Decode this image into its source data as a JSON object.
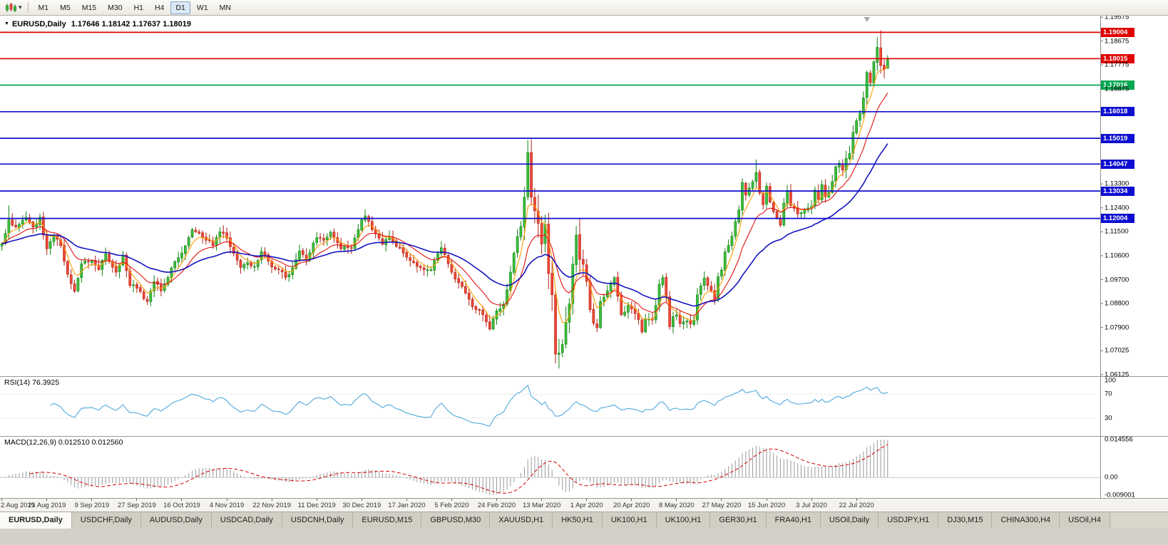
{
  "toolbar": {
    "chart_type_icon": "candlestick-chart-icon",
    "dropdown_icon": "chevron-down-icon",
    "timeframes": [
      "M1",
      "M5",
      "M15",
      "M30",
      "H1",
      "H4",
      "D1",
      "W1",
      "MN"
    ],
    "active_timeframe": "D1"
  },
  "chart": {
    "collapse_icon": "triangle-down-icon",
    "title_symbol": "EURUSD,Daily",
    "title_values": "1.17646 1.18142 1.17637 1.18019",
    "shift_marker": {
      "icon": "shift-triangle-icon",
      "bar": 250
    },
    "price_axis_labels": [
      {
        "text": "1.19575",
        "price": 1.19575
      },
      {
        "text": "1.18675",
        "price": 1.18675
      },
      {
        "text": "1.17775",
        "price": 1.17775
      },
      {
        "text": "1.16875",
        "price": 1.16875
      },
      {
        "text": "1.13300",
        "price": 1.133
      },
      {
        "text": "1.12400",
        "price": 1.124
      },
      {
        "text": "1.11500",
        "price": 1.115
      },
      {
        "text": "1.10600",
        "price": 1.106
      },
      {
        "text": "1.09700",
        "price": 1.097
      },
      {
        "text": "1.08800",
        "price": 1.088
      },
      {
        "text": "1.07900",
        "price": 1.079
      },
      {
        "text": "1.07025",
        "price": 1.07025
      },
      {
        "text": "1.06125",
        "price": 1.06125
      }
    ],
    "time_axis_labels": [
      {
        "text": "2 Aug 2019",
        "bar": 0
      },
      {
        "text": "21 Aug 2019",
        "bar": 13
      },
      {
        "text": "9 Sep 2019",
        "bar": 26
      },
      {
        "text": "27 Sep 2019",
        "bar": 39
      },
      {
        "text": "16 Oct 2019",
        "bar": 52
      },
      {
        "text": "4 Nov 2019",
        "bar": 65
      },
      {
        "text": "22 Nov 2019",
        "bar": 78
      },
      {
        "text": "11 Dec 2019",
        "bar": 91
      },
      {
        "text": "30 Dec 2019",
        "bar": 104
      },
      {
        "text": "17 Jan 2020",
        "bar": 117
      },
      {
        "text": "5 Feb 2020",
        "bar": 130
      },
      {
        "text": "24 Feb 2020",
        "bar": 143
      },
      {
        "text": "13 Mar 2020",
        "bar": 156
      },
      {
        "text": "1 Apr 2020",
        "bar": 169
      },
      {
        "text": "20 Apr 2020",
        "bar": 182
      },
      {
        "text": "8 May 2020",
        "bar": 195
      },
      {
        "text": "27 May 2020",
        "bar": 208
      },
      {
        "text": "15 Jun 2020",
        "bar": 221
      },
      {
        "text": "3 Jul 2020",
        "bar": 234
      },
      {
        "text": "22 Jul 2020",
        "bar": 247
      }
    ]
  },
  "rsi": {
    "label": "RSI(14) 76.3925",
    "period": 14,
    "current_value": "76.3925",
    "line_color": "#4FA8DE",
    "level_lines": [
      70,
      30
    ],
    "axis_labels": [
      {
        "text": "100",
        "value": 100
      },
      {
        "text": "70",
        "value": 70
      },
      {
        "text": "30",
        "value": 30
      }
    ]
  },
  "macd": {
    "label": "MACD(12,26,9) 0.012510 0.012560",
    "value_main": "0.012510",
    "value_signal": "0.012560",
    "histogram_color": "#9A9A9A",
    "signal_color": "#D40000",
    "axis_labels": [
      {
        "text": "0.014556",
        "anchor": "max"
      },
      {
        "text": "0.00",
        "anchor": "zero"
      },
      {
        "text": "-0.009001",
        "anchor": "min"
      }
    ]
  },
  "tabs": {
    "items": [
      {
        "label": "EURUSD,Daily",
        "active": true
      },
      {
        "label": "USDCHF,Daily",
        "active": false
      },
      {
        "label": "AUDUSD,Daily",
        "active": false
      },
      {
        "label": "USDCAD,Daily",
        "active": false
      },
      {
        "label": "USDCNH,Daily",
        "active": false
      },
      {
        "label": "EURUSD,M15",
        "active": false
      },
      {
        "label": "GBPUSD,M30",
        "active": false
      },
      {
        "label": "XAUUSD,H1",
        "active": false
      },
      {
        "label": "HK50,H1",
        "active": false
      },
      {
        "label": "UK100,H1",
        "active": false
      },
      {
        "label": "UK100,H1",
        "active": false
      },
      {
        "label": "GER30,H1",
        "active": false
      },
      {
        "label": "FRA40,H1",
        "active": false
      },
      {
        "label": "USOil,Daily",
        "active": false
      },
      {
        "label": "USDJPY,H1",
        "active": false
      },
      {
        "label": "DJ30,M15",
        "active": false
      },
      {
        "label": "CHINA300,H4",
        "active": false
      },
      {
        "label": "USOil,H4",
        "active": false
      }
    ]
  },
  "chart_data": {
    "type": "candlestick",
    "symbol": "EURUSD",
    "period": "Daily",
    "bars_visible": 257,
    "right_shift_bars": 61,
    "price_range_visible": {
      "min": 1.06125,
      "max": 1.19575
    },
    "first_label": "2 Aug 2019",
    "last_label": "22 Jul 2020",
    "current_bar": {
      "open": 1.17646,
      "high": 1.18142,
      "low": 1.17637,
      "close": 1.18019
    },
    "bull_color": "#3CBD3C",
    "bear_color": "#EF4937",
    "moving_averages": [
      {
        "name": "fast",
        "method": "ema",
        "period": 5,
        "color": "#FF9E00"
      },
      {
        "name": "mid",
        "method": "ema",
        "period": 13,
        "color": "#E31212"
      },
      {
        "name": "slow",
        "method": "ema",
        "period": 34,
        "color": "#1414BE"
      }
    ],
    "horizontal_lines": [
      {
        "price": 1.19004,
        "label": "1.19004",
        "color": "#E00000"
      },
      {
        "price": 1.18015,
        "label": "1.18015",
        "color": "#E00000"
      },
      {
        "price": 1.17016,
        "label": "1.17016",
        "color": "#00A850"
      },
      {
        "price": 1.16018,
        "label": "1.16018",
        "color": "#0E0ED0"
      },
      {
        "price": 1.15019,
        "label": "1.15019",
        "color": "#0E0ED0"
      },
      {
        "price": 1.14047,
        "label": "1.14047",
        "color": "#0E0ED0"
      },
      {
        "price": 1.13034,
        "label": "1.13034",
        "color": "#0E0ED0"
      },
      {
        "price": 1.12004,
        "label": "1.12004",
        "color": "#0E0ED0"
      }
    ],
    "close_anchors": [
      [
        0,
        1.1105
      ],
      [
        2,
        1.1195
      ],
      [
        4,
        1.1168
      ],
      [
        7,
        1.1205
      ],
      [
        9,
        1.1168
      ],
      [
        11,
        1.1205
      ],
      [
        13,
        1.1086
      ],
      [
        15,
        1.1138
      ],
      [
        17,
        1.1098
      ],
      [
        19,
        1.099
      ],
      [
        21,
        1.0926
      ],
      [
        23,
        1.103
      ],
      [
        26,
        1.1042
      ],
      [
        28,
        1.1008
      ],
      [
        30,
        1.1068
      ],
      [
        33,
        1.0998
      ],
      [
        35,
        1.1062
      ],
      [
        37,
        1.0948
      ],
      [
        39,
        1.0938
      ],
      [
        41,
        1.0898
      ],
      [
        42,
        1.0888
      ],
      [
        44,
        1.0962
      ],
      [
        46,
        1.0928
      ],
      [
        48,
        1.0978
      ],
      [
        50,
        1.1038
      ],
      [
        52,
        1.107
      ],
      [
        55,
        1.1158
      ],
      [
        58,
        1.1128
      ],
      [
        61,
        1.1098
      ],
      [
        63,
        1.115
      ],
      [
        65,
        1.1126
      ],
      [
        67,
        1.1068
      ],
      [
        69,
        1.1016
      ],
      [
        71,
        1.1034
      ],
      [
        73,
        1.102
      ],
      [
        75,
        1.1076
      ],
      [
        78,
        1.1018
      ],
      [
        80,
        1.1008
      ],
      [
        82,
        1.0978
      ],
      [
        84,
        1.1015
      ],
      [
        86,
        1.1078
      ],
      [
        88,
        1.1048
      ],
      [
        91,
        1.1128
      ],
      [
        93,
        1.1118
      ],
      [
        95,
        1.1148
      ],
      [
        98,
        1.1086
      ],
      [
        101,
        1.109
      ],
      [
        104,
        1.1196
      ],
      [
        105,
        1.121
      ],
      [
        107,
        1.1158
      ],
      [
        110,
        1.1103
      ],
      [
        112,
        1.113
      ],
      [
        115,
        1.1088
      ],
      [
        118,
        1.1042
      ],
      [
        120,
        1.102
      ],
      [
        124,
        1.1008
      ],
      [
        127,
        1.109
      ],
      [
        130,
        1.0998
      ],
      [
        133,
        1.0944
      ],
      [
        136,
        1.0868
      ],
      [
        139,
        1.0838
      ],
      [
        141,
        1.0784
      ],
      [
        143,
        1.0853
      ],
      [
        145,
        1.0878
      ],
      [
        147,
        1.0998
      ],
      [
        149,
        1.1132
      ],
      [
        150,
        1.117
      ],
      [
        151,
        1.128
      ],
      [
        152,
        1.1448
      ],
      [
        153,
        1.128
      ],
      [
        155,
        1.1182
      ],
      [
        156,
        1.1104
      ],
      [
        157,
        1.1178
      ],
      [
        158,
        1.0993
      ],
      [
        159,
        1.0913
      ],
      [
        160,
        1.069
      ],
      [
        161,
        1.0694
      ],
      [
        162,
        1.0726
      ],
      [
        164,
        1.0879
      ],
      [
        165,
        1.1028
      ],
      [
        166,
        1.1138
      ],
      [
        167,
        1.1046
      ],
      [
        168,
        1.1028
      ],
      [
        169,
        1.0963
      ],
      [
        170,
        1.0857
      ],
      [
        171,
        1.0806
      ],
      [
        172,
        1.0789
      ],
      [
        173,
        1.0888
      ],
      [
        175,
        1.0928
      ],
      [
        177,
        1.0978
      ],
      [
        178,
        1.0908
      ],
      [
        179,
        1.0838
      ],
      [
        181,
        1.0873
      ],
      [
        182,
        1.086
      ],
      [
        184,
        1.082
      ],
      [
        185,
        1.0773
      ],
      [
        186,
        1.082
      ],
      [
        188,
        1.0818
      ],
      [
        189,
        1.0873
      ],
      [
        190,
        1.0953
      ],
      [
        191,
        1.0978
      ],
      [
        192,
        1.0905
      ],
      [
        193,
        1.0793
      ],
      [
        194,
        1.0831
      ],
      [
        195,
        1.0838
      ],
      [
        196,
        1.0805
      ],
      [
        198,
        1.0815
      ],
      [
        199,
        1.0803
      ],
      [
        200,
        1.0818
      ],
      [
        201,
        1.0913
      ],
      [
        203,
        1.0976
      ],
      [
        204,
        1.0948
      ],
      [
        206,
        1.0896
      ],
      [
        207,
        1.0981
      ],
      [
        208,
        1.1006
      ],
      [
        209,
        1.1074
      ],
      [
        210,
        1.1099
      ],
      [
        211,
        1.1133
      ],
      [
        213,
        1.1232
      ],
      [
        214,
        1.1335
      ],
      [
        215,
        1.1288
      ],
      [
        217,
        1.1338
      ],
      [
        218,
        1.1373
      ],
      [
        219,
        1.1296
      ],
      [
        220,
        1.1252
      ],
      [
        221,
        1.1322
      ],
      [
        222,
        1.1262
      ],
      [
        224,
        1.1203
      ],
      [
        225,
        1.1175
      ],
      [
        226,
        1.1258
      ],
      [
        227,
        1.1306
      ],
      [
        228,
        1.1249
      ],
      [
        230,
        1.1217
      ],
      [
        232,
        1.1232
      ],
      [
        234,
        1.1246
      ],
      [
        235,
        1.1307
      ],
      [
        236,
        1.1272
      ],
      [
        237,
        1.1328
      ],
      [
        238,
        1.1282
      ],
      [
        239,
        1.1298
      ],
      [
        240,
        1.1339
      ],
      [
        241,
        1.1395
      ],
      [
        242,
        1.1408
      ],
      [
        243,
        1.1382
      ],
      [
        244,
        1.1426
      ],
      [
        245,
        1.1445
      ],
      [
        246,
        1.1524
      ],
      [
        247,
        1.1568
      ],
      [
        248,
        1.1596
      ],
      [
        249,
        1.1654
      ],
      [
        250,
        1.175
      ],
      [
        251,
        1.1711
      ],
      [
        252,
        1.1789
      ],
      [
        253,
        1.1844
      ],
      [
        254,
        1.1776
      ],
      [
        255,
        1.176
      ],
      [
        256,
        1.18019
      ]
    ],
    "wick_overrides": [
      [
        2,
        "h",
        1.1249
      ],
      [
        141,
        "l",
        1.0778
      ],
      [
        152,
        "h",
        1.1495
      ],
      [
        160,
        "l",
        1.0655
      ],
      [
        161,
        "l",
        1.0636
      ],
      [
        194,
        "l",
        1.0767
      ],
      [
        218,
        "h",
        1.1422
      ],
      [
        253,
        "h",
        1.1882
      ],
      [
        254,
        "h",
        1.1908
      ]
    ],
    "indicators": [
      "RSI(14)",
      "MACD(12,26,9)"
    ]
  }
}
